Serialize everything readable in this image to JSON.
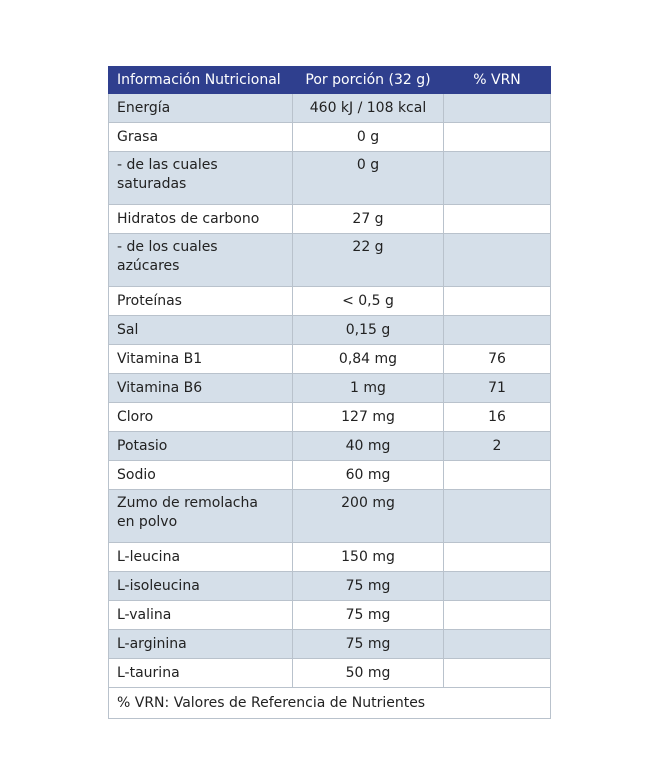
{
  "table": {
    "header": [
      "Información Nutricional",
      "Por porción (32 g)",
      "% VRN"
    ],
    "rows": [
      [
        "Energía",
        "460 kJ / 108 kcal"
      ],
      [
        "Grasa",
        "0 g"
      ],
      [
        "- de las cuales\nsaturadas",
        "0 g"
      ],
      [
        "Hidratos de carbono",
        "27 g"
      ],
      [
        "- de los cuales\nazúcares",
        "22 g"
      ],
      [
        "Proteínas",
        "< 0,5 g"
      ],
      [
        "Sal",
        "0,15 g"
      ],
      [
        "Vitamina B1",
        "0,84 mg",
        "76"
      ],
      [
        "Vitamina B6",
        "1 mg",
        "71"
      ],
      [
        "Cloro",
        "127 mg",
        "16"
      ],
      [
        "Potasio",
        "40 mg",
        "2"
      ],
      [
        "Sodio",
        "60 mg"
      ],
      [
        "Zumo de remolacha\nen polvo",
        "200 mg"
      ],
      [
        "L-leucina",
        "150 mg"
      ],
      [
        "L-isoleucina",
        "75 mg"
      ],
      [
        "L-valina",
        "75 mg"
      ],
      [
        "L-arginina",
        "75 mg"
      ],
      [
        "L-taurina",
        "50 mg"
      ]
    ],
    "footnote": "% VRN: Valores de Referencia de Nutrientes"
  }
}
